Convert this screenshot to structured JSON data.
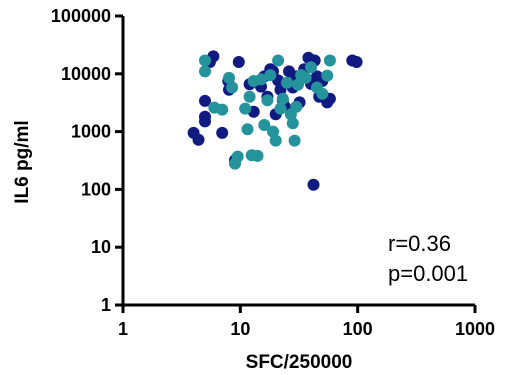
{
  "chart_data": {
    "type": "scatter",
    "title": "",
    "xlabel": "SFC/250000",
    "ylabel": "IL6 pg/ml",
    "xscale": "log",
    "yscale": "log",
    "xlim": [
      1,
      1000
    ],
    "ylim": [
      1,
      100000
    ],
    "x_ticks": [
      1,
      10,
      100,
      1000
    ],
    "x_tick_labels": [
      "1",
      "10",
      "100",
      "1000"
    ],
    "y_ticks": [
      1,
      10,
      100,
      1000,
      10000,
      100000
    ],
    "y_tick_labels": [
      "1",
      "10",
      "100",
      "1000",
      "10000",
      "100000"
    ],
    "grid": false,
    "annotations": [
      "r=0.36",
      "p=0.001"
    ],
    "series": [
      {
        "color": "#111a80",
        "points": [
          [
            4.0,
            950
          ],
          [
            4.4,
            720
          ],
          [
            5.0,
            3400
          ],
          [
            5.0,
            1800
          ],
          [
            5.0,
            1500
          ],
          [
            5.5,
            16000
          ],
          [
            5.9,
            20000
          ],
          [
            7.0,
            950
          ],
          [
            7.9,
            7500
          ],
          [
            8.0,
            5300
          ],
          [
            9.0,
            320
          ],
          [
            9.7,
            16000
          ],
          [
            12.0,
            6600
          ],
          [
            13.0,
            2200
          ],
          [
            15.0,
            6000
          ],
          [
            16.0,
            9000
          ],
          [
            17.0,
            4000
          ],
          [
            18.0,
            12000
          ],
          [
            19.0,
            11000
          ],
          [
            20.0,
            2000
          ],
          [
            21.0,
            7700
          ],
          [
            22.0,
            5300
          ],
          [
            23.0,
            3500
          ],
          [
            24.0,
            2700
          ],
          [
            26.0,
            11000
          ],
          [
            28.0,
            5800
          ],
          [
            30.0,
            9000
          ],
          [
            32.0,
            3200
          ],
          [
            35.0,
            12000
          ],
          [
            38.0,
            19000
          ],
          [
            40.0,
            6700
          ],
          [
            42.0,
            120
          ],
          [
            43.0,
            17000
          ],
          [
            45.0,
            9000
          ],
          [
            47.0,
            4000
          ],
          [
            50.0,
            7500
          ],
          [
            55.0,
            3200
          ],
          [
            58.0,
            3700
          ],
          [
            90.0,
            17000
          ],
          [
            98.0,
            16000
          ]
        ]
      },
      {
        "color": "#24939b",
        "points": [
          [
            5.0,
            17000
          ],
          [
            5.0,
            11000
          ],
          [
            6.0,
            2600
          ],
          [
            7.0,
            2400
          ],
          [
            8.0,
            8500
          ],
          [
            8.5,
            5800
          ],
          [
            9.0,
            280
          ],
          [
            9.5,
            370
          ],
          [
            11.0,
            2500
          ],
          [
            11.5,
            1100
          ],
          [
            12.0,
            4000
          ],
          [
            12.5,
            390
          ],
          [
            13.0,
            7500
          ],
          [
            14.0,
            380
          ],
          [
            15.0,
            8000
          ],
          [
            16.0,
            1300
          ],
          [
            17.0,
            3500
          ],
          [
            18.0,
            9500
          ],
          [
            19.0,
            1000
          ],
          [
            20.0,
            700
          ],
          [
            21.0,
            17000
          ],
          [
            22.0,
            2500
          ],
          [
            23.0,
            3700
          ],
          [
            25.0,
            7000
          ],
          [
            27.0,
            2000
          ],
          [
            28.0,
            1400
          ],
          [
            29.0,
            700
          ],
          [
            30.0,
            2700
          ],
          [
            31.0,
            6500
          ],
          [
            33.0,
            9500
          ],
          [
            36.0,
            8500
          ],
          [
            40.0,
            13000
          ],
          [
            45.0,
            5800
          ],
          [
            50.0,
            4500
          ],
          [
            55.0,
            9300
          ],
          [
            58.0,
            17000
          ]
        ]
      }
    ]
  }
}
